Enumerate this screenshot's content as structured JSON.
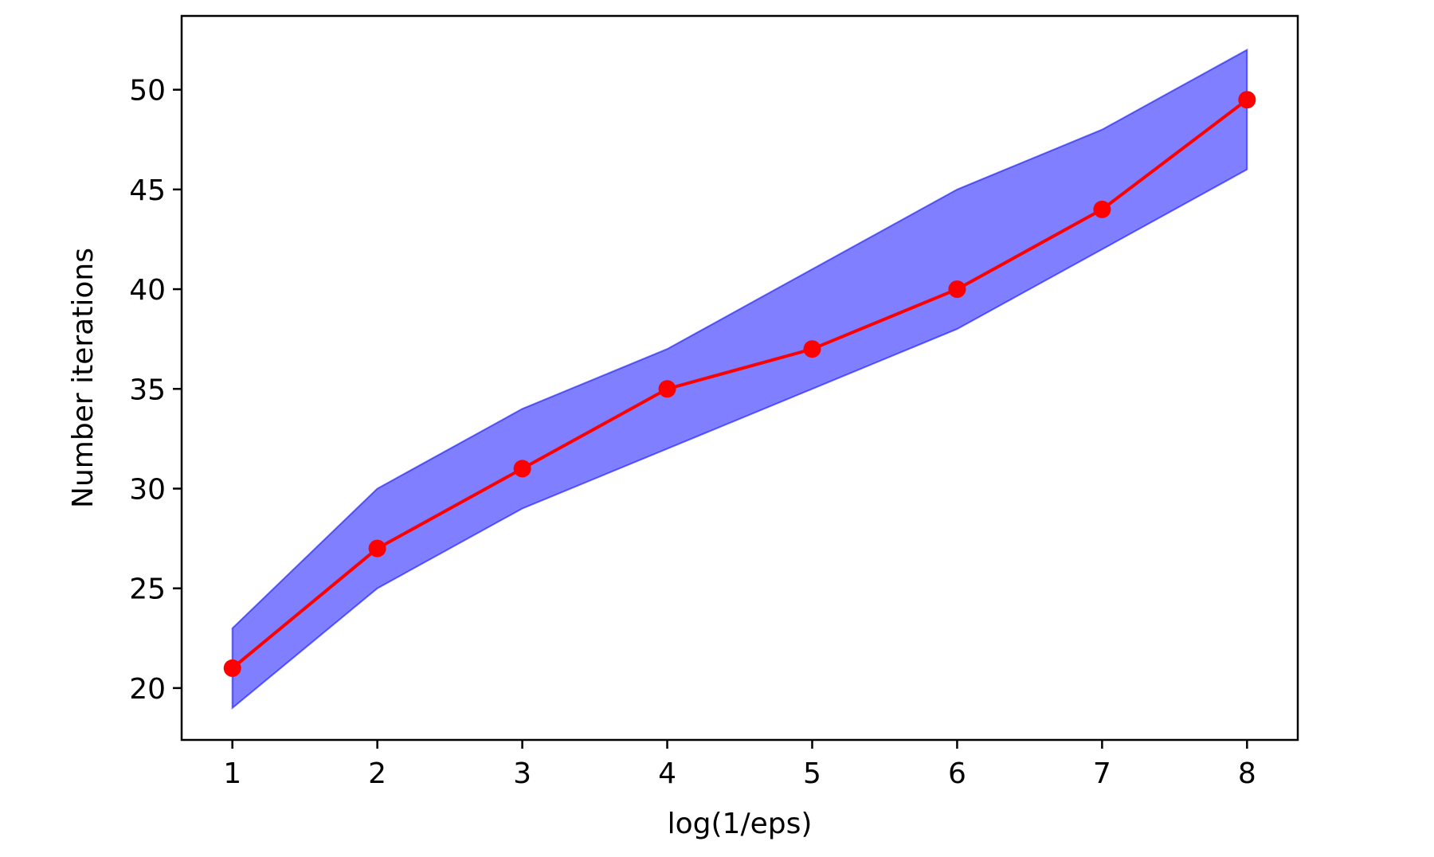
{
  "chart_data": {
    "type": "line",
    "title": "",
    "xlabel": "log(1/eps)",
    "ylabel": "Number iterations",
    "x": [
      1,
      2,
      3,
      4,
      5,
      6,
      7,
      8
    ],
    "series": [
      {
        "values": [
          21,
          27,
          31,
          35,
          37,
          40,
          44,
          49.5
        ],
        "color": "#ff0000",
        "marker": "circle"
      }
    ],
    "band": {
      "lower": [
        19,
        25,
        29,
        32,
        35,
        38,
        42,
        46
      ],
      "upper": [
        23,
        30,
        34,
        37,
        41,
        45,
        48,
        52
      ],
      "color": "#0000ff",
      "opacity": 0.5
    },
    "x_ticks": [
      1,
      2,
      3,
      4,
      5,
      6,
      7,
      8
    ],
    "y_ticks": [
      20,
      25,
      30,
      35,
      40,
      45,
      50
    ],
    "xlim": [
      0.65,
      8.35
    ],
    "ylim": [
      17.4,
      53.7
    ],
    "grid": false,
    "legend": "none"
  }
}
